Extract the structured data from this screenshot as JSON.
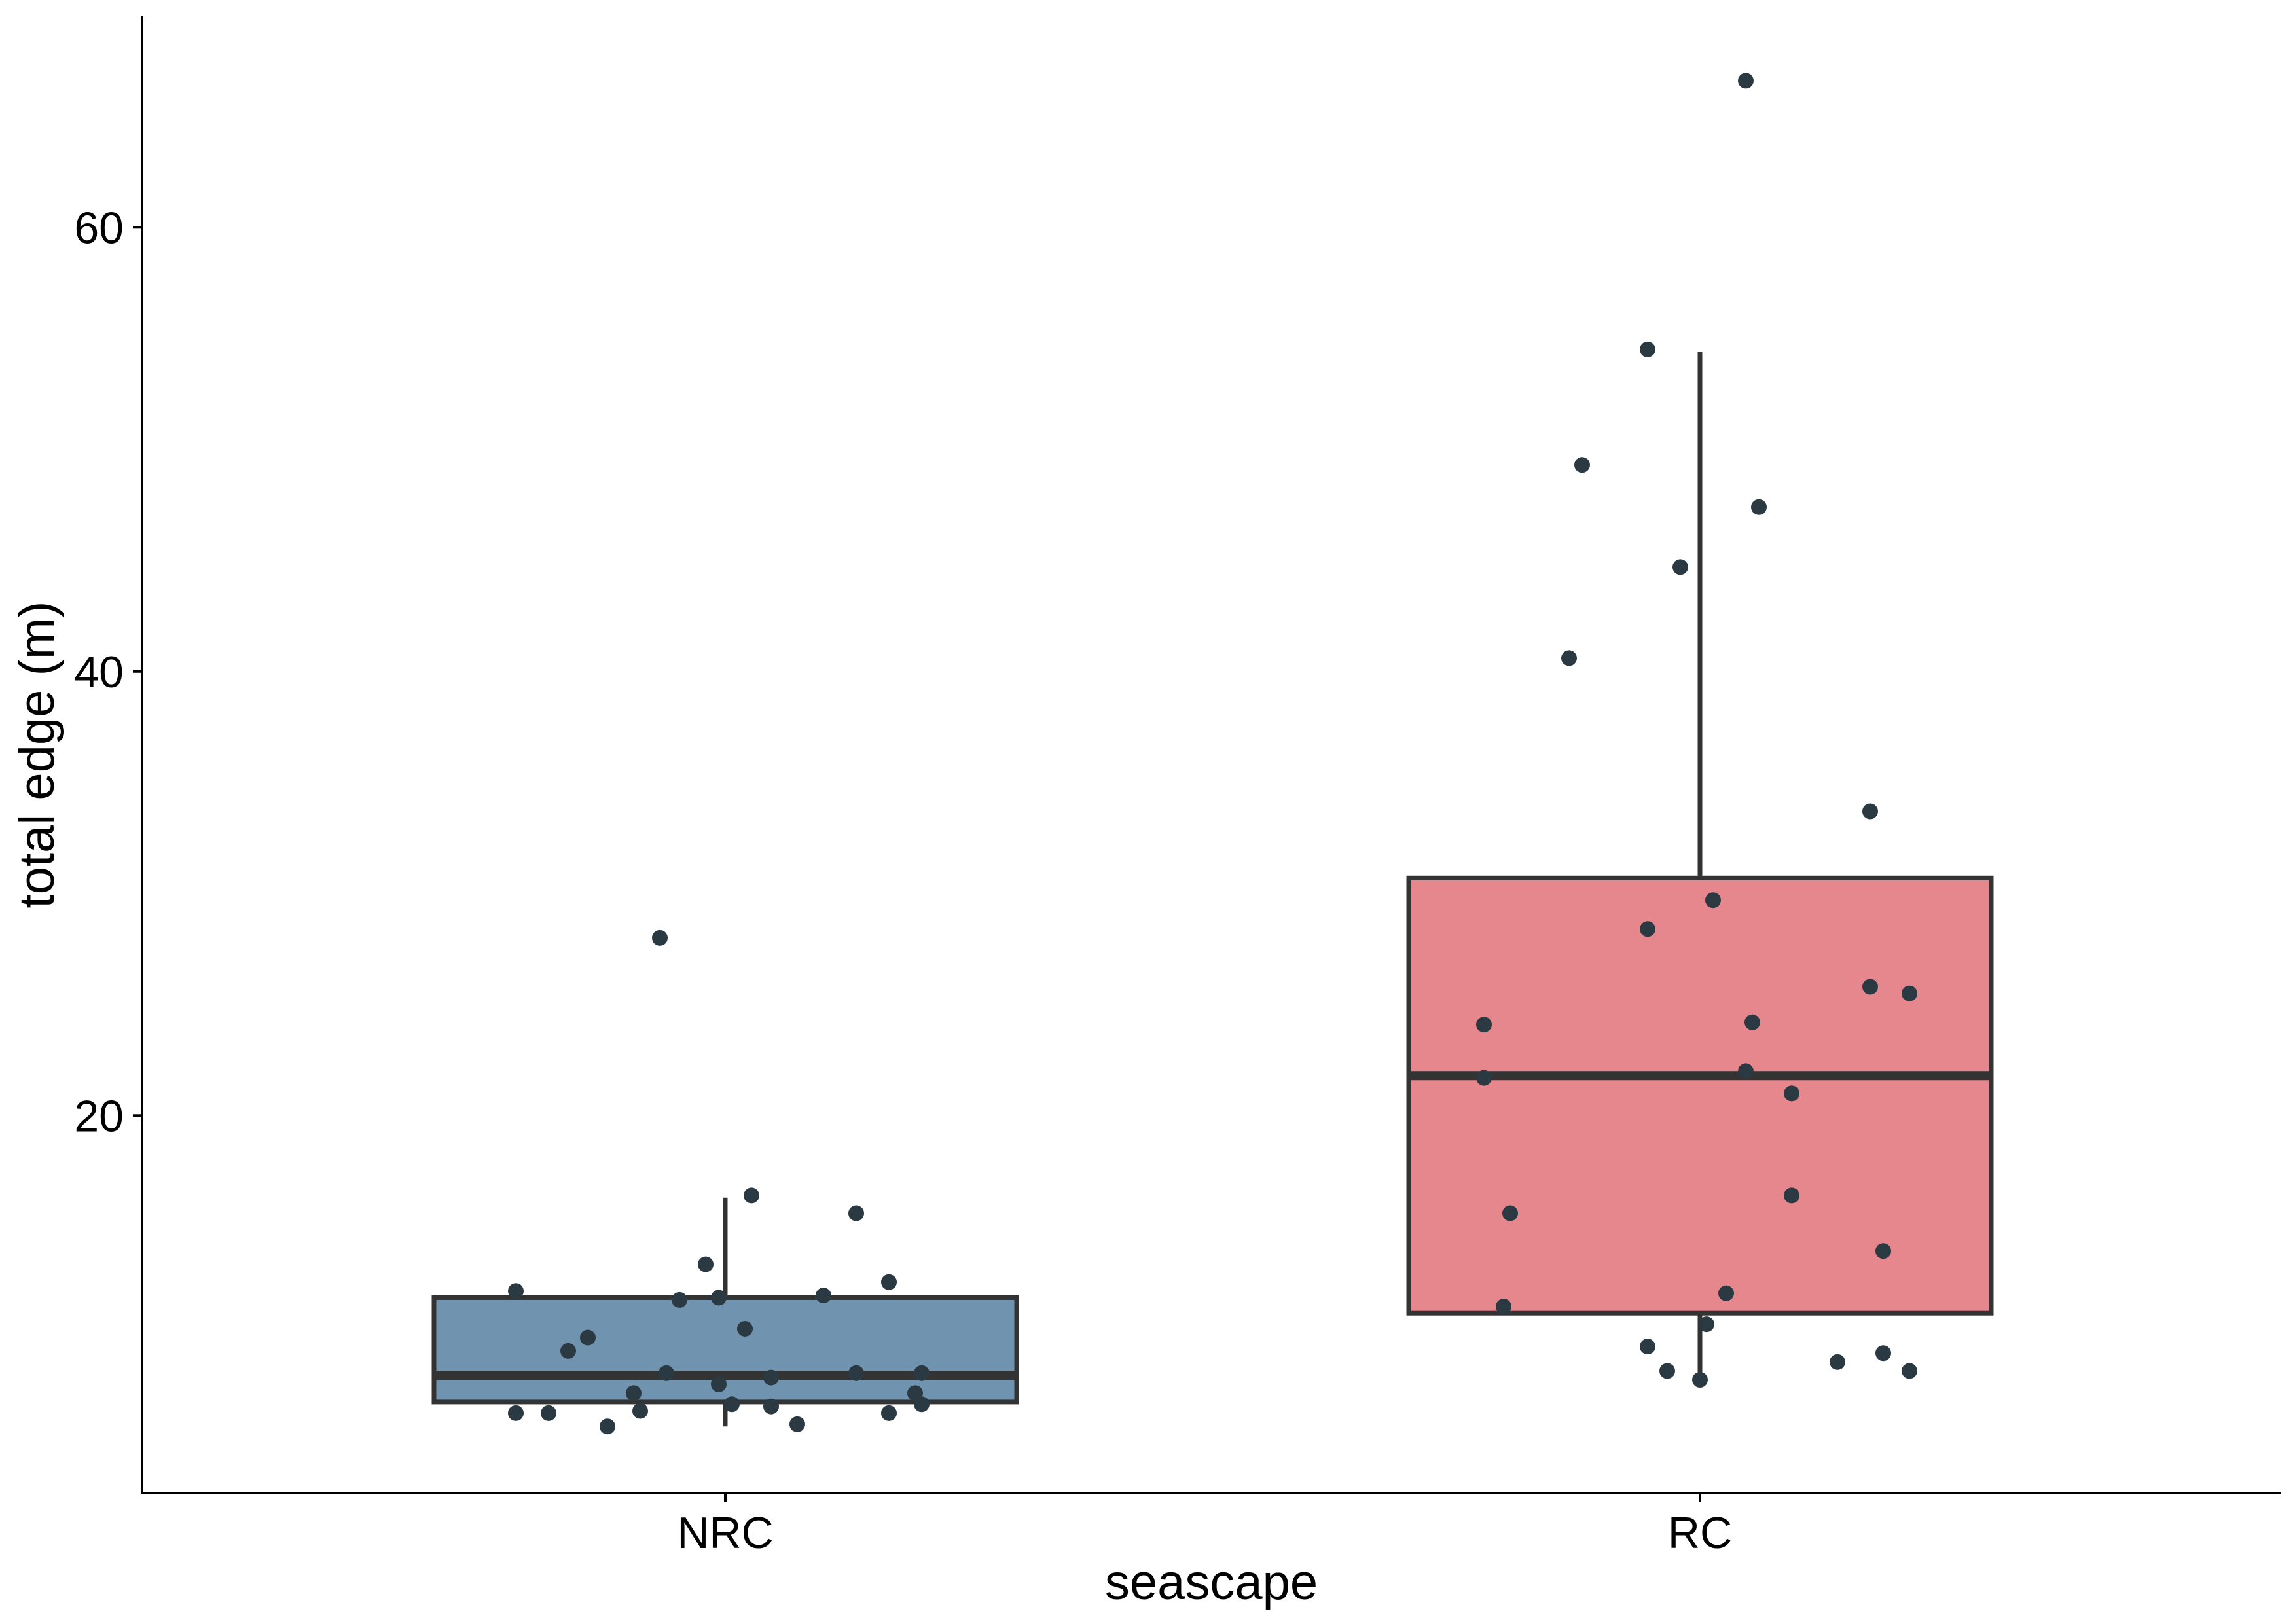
{
  "chart_data": {
    "type": "boxplot",
    "title": "",
    "xlabel": "seascape",
    "ylabel": "total edge (m)",
    "categories": [
      "NRC",
      "RC"
    ],
    "ylim": [
      3,
      69.5
    ],
    "yticks": [
      20,
      40,
      60
    ],
    "ytick_labels": [
      "20",
      "40",
      "60"
    ],
    "grid": false,
    "legend": "none",
    "colors": {
      "NRC": "#7093b0",
      "RC": "#e5878d",
      "outline": "#333333",
      "points": "#2b3a42",
      "axis": "#000000"
    },
    "boxes": [
      {
        "category": "NRC",
        "q1": 7.1,
        "median": 8.3,
        "q3": 11.8,
        "whisker_low": 6.0,
        "whisker_high": 16.3
      },
      {
        "category": "RC",
        "q1": 11.1,
        "median": 21.8,
        "q3": 30.7,
        "whisker_low": 7.9,
        "whisker_high": 54.4
      }
    ],
    "points": {
      "NRC": [
        {
          "jitter": -0.32,
          "y": 12.1
        },
        {
          "jitter": -0.24,
          "y": 9.4
        },
        {
          "jitter": -0.21,
          "y": 10.0
        },
        {
          "jitter": -0.32,
          "y": 6.6
        },
        {
          "jitter": -0.27,
          "y": 6.6
        },
        {
          "jitter": -0.18,
          "y": 6.0
        },
        {
          "jitter": -0.14,
          "y": 7.5
        },
        {
          "jitter": -0.13,
          "y": 6.7
        },
        {
          "jitter": -0.09,
          "y": 8.4
        },
        {
          "jitter": -0.07,
          "y": 11.7
        },
        {
          "jitter": -0.1,
          "y": 28.0
        },
        {
          "jitter": -0.03,
          "y": 13.3
        },
        {
          "jitter": -0.01,
          "y": 11.8
        },
        {
          "jitter": -0.01,
          "y": 7.9
        },
        {
          "jitter": 0.01,
          "y": 7.0
        },
        {
          "jitter": 0.03,
          "y": 10.4
        },
        {
          "jitter": 0.04,
          "y": 16.4
        },
        {
          "jitter": 0.07,
          "y": 8.2
        },
        {
          "jitter": 0.07,
          "y": 6.9
        },
        {
          "jitter": 0.11,
          "y": 6.1
        },
        {
          "jitter": 0.15,
          "y": 11.9
        },
        {
          "jitter": 0.2,
          "y": 15.6
        },
        {
          "jitter": 0.2,
          "y": 8.4
        },
        {
          "jitter": 0.25,
          "y": 12.5
        },
        {
          "jitter": 0.25,
          "y": 6.6
        },
        {
          "jitter": 0.29,
          "y": 7.5
        },
        {
          "jitter": 0.3,
          "y": 8.4
        },
        {
          "jitter": 0.3,
          "y": 7.0
        }
      ],
      "RC": [
        {
          "jitter": -0.33,
          "y": 24.1
        },
        {
          "jitter": -0.33,
          "y": 21.7
        },
        {
          "jitter": -0.29,
          "y": 15.6
        },
        {
          "jitter": -0.3,
          "y": 11.4
        },
        {
          "jitter": -0.2,
          "y": 40.6
        },
        {
          "jitter": -0.18,
          "y": 49.3
        },
        {
          "jitter": -0.08,
          "y": 54.5
        },
        {
          "jitter": -0.08,
          "y": 28.4
        },
        {
          "jitter": -0.08,
          "y": 9.6
        },
        {
          "jitter": -0.05,
          "y": 8.5
        },
        {
          "jitter": -0.03,
          "y": 44.7
        },
        {
          "jitter": 0.01,
          "y": 10.6
        },
        {
          "jitter": 0.0,
          "y": 8.1
        },
        {
          "jitter": 0.02,
          "y": 29.7
        },
        {
          "jitter": 0.04,
          "y": 12.0
        },
        {
          "jitter": 0.07,
          "y": 66.6
        },
        {
          "jitter": 0.08,
          "y": 24.2
        },
        {
          "jitter": 0.07,
          "y": 22.0
        },
        {
          "jitter": 0.09,
          "y": 47.4
        },
        {
          "jitter": 0.14,
          "y": 21.0
        },
        {
          "jitter": 0.14,
          "y": 16.4
        },
        {
          "jitter": 0.21,
          "y": 8.9
        },
        {
          "jitter": 0.26,
          "y": 33.7
        },
        {
          "jitter": 0.26,
          "y": 25.8
        },
        {
          "jitter": 0.28,
          "y": 13.9
        },
        {
          "jitter": 0.28,
          "y": 9.3
        },
        {
          "jitter": 0.32,
          "y": 25.5
        },
        {
          "jitter": 0.32,
          "y": 8.5
        }
      ]
    }
  }
}
